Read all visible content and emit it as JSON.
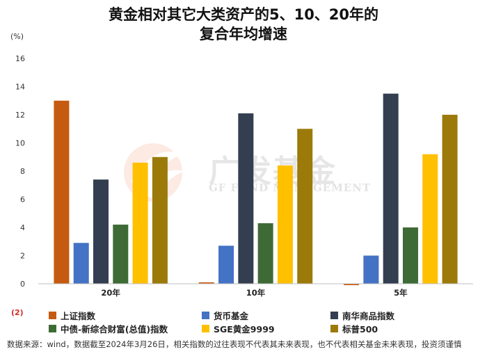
{
  "chart_data": {
    "type": "bar",
    "title_line1": "黄金相对其它大类资产的5、10、20年的",
    "title_line2": "复合年均增速",
    "ylabel": "(%)",
    "ylim": [
      0,
      16
    ],
    "yticks": [
      "0",
      "2",
      "4",
      "6",
      "8",
      "10",
      "12",
      "14",
      "16"
    ],
    "negative_marker": "(2)",
    "categories": [
      "20年",
      "10年",
      "5年"
    ],
    "series": [
      {
        "name": "上证指数",
        "color": "#C55A11",
        "values": [
          13.0,
          0.1,
          -0.1
        ]
      },
      {
        "name": "货币基金",
        "color": "#4472C4",
        "values": [
          2.9,
          2.7,
          2.0
        ]
      },
      {
        "name": "南华商品指数",
        "color": "#333F50",
        "values": [
          7.4,
          12.1,
          13.5
        ]
      },
      {
        "name": "中债-新综合财富(总值)指数",
        "color": "#3E6B35",
        "values": [
          4.2,
          4.3,
          4.0
        ]
      },
      {
        "name": "SGE黄金9999",
        "color": "#FFC000",
        "values": [
          8.6,
          8.4,
          9.2
        ]
      },
      {
        "name": "标普500",
        "color": "#9C7A0A",
        "values": [
          9.0,
          11.0,
          12.0
        ]
      }
    ],
    "grid": false,
    "legend_position": "bottom"
  },
  "watermark": {
    "cn": "广发基金",
    "en": "GF FUND MANAGEMENT"
  },
  "footnote": "数据来源：wind，数据截至2024年3月26日，相关指数的过往表现不代表其未来表现，也不代表相关基金未来表现，投资须谨慎"
}
